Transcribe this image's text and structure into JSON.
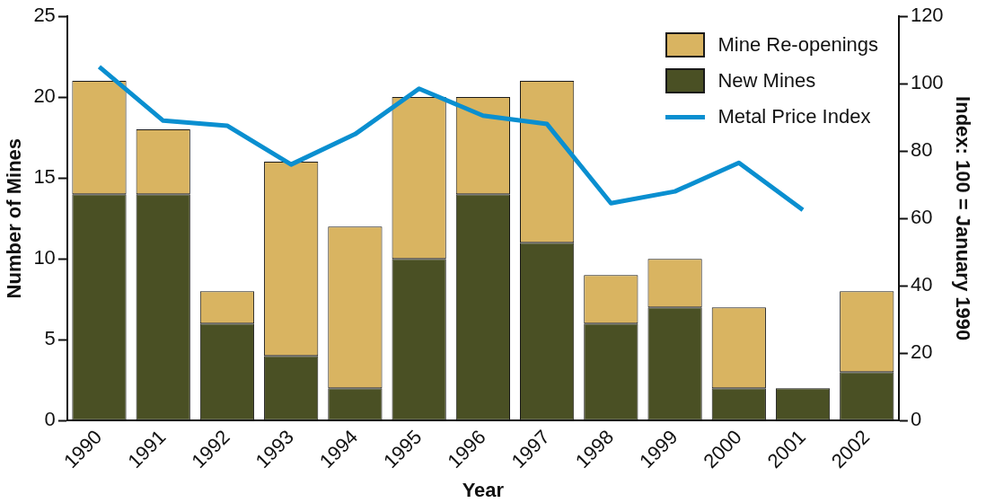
{
  "chart_data": {
    "type": "bar",
    "stacked": true,
    "categories": [
      "1990",
      "1991",
      "1992",
      "1993",
      "1994",
      "1995",
      "1996",
      "1997",
      "1998",
      "1999",
      "2000",
      "2001",
      "2002"
    ],
    "xlabel": "Year",
    "ylabel": "Number of Mines",
    "y2label": "Index: 100 = January 1990",
    "ylim": [
      0,
      25
    ],
    "yticks": [
      0,
      5,
      10,
      15,
      20,
      25
    ],
    "y2lim": [
      0,
      120
    ],
    "y2ticks": [
      0,
      20,
      40,
      60,
      80,
      100,
      120
    ],
    "legend": "top right",
    "grid": false,
    "series": [
      {
        "name": "New Mines",
        "color": "#4a5024",
        "values": [
          14,
          14,
          6,
          4,
          2,
          10,
          14,
          11,
          6,
          7,
          2,
          2,
          3
        ]
      },
      {
        "name": "Mine Re-openings",
        "color": "#d9b461",
        "values": [
          7,
          4,
          2,
          12,
          10,
          10,
          6,
          10,
          3,
          3,
          5,
          0,
          5
        ]
      },
      {
        "name": "Metal Price Index",
        "type": "line",
        "axis": "y2",
        "color": "#0a8fd0",
        "values": [
          105,
          89,
          87.5,
          76,
          85,
          98.5,
          90.5,
          88,
          64.5,
          68,
          76.5,
          62.5,
          null
        ]
      }
    ]
  }
}
